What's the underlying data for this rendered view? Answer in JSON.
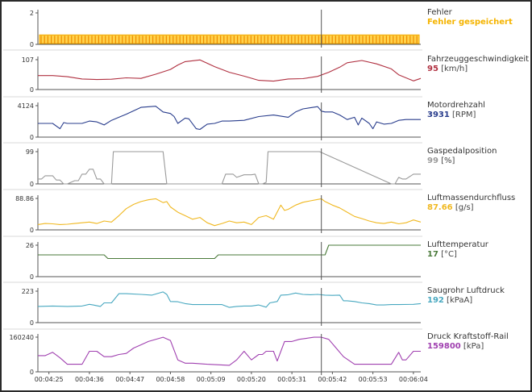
{
  "chart_data": {
    "type": "line",
    "x_ticks": [
      "00:04:25",
      "00:04:36",
      "00:04:47",
      "00:04:58",
      "00:05:09",
      "00:05:20",
      "00:05:31",
      "00:05:42",
      "00:05:53",
      "00:06:04"
    ],
    "x_range_seconds": [
      262,
      366
    ],
    "x_tick_seconds": [
      265,
      276,
      287,
      298,
      309,
      320,
      331,
      342,
      353,
      364
    ],
    "cursor_seconds": 339,
    "panels": [
      {
        "id": "fehler",
        "name": "Fehler",
        "value_text": "Fehler gespeichert",
        "unit": "",
        "color": "#f5b400",
        "ymax_label": "2",
        "ymin_label": "0",
        "ylim": [
          0,
          2
        ],
        "kind": "error-strip",
        "level": 0.6
      },
      {
        "id": "fahrzeuggeschwindigkeit",
        "name": "Fahrzeuggeschwindigkeit",
        "value_text": "95",
        "unit": "[km/h]",
        "color": "#b03040",
        "ymax_label": "107",
        "ymin_label": "0",
        "ylim": [
          0,
          107
        ],
        "kind": "line",
        "x": [
          262,
          266,
          270,
          274,
          278,
          282,
          286,
          290,
          294,
          298,
          300,
          302,
          306,
          310,
          314,
          318,
          322,
          326,
          330,
          334,
          338,
          341,
          344,
          346,
          350,
          354,
          358,
          360,
          364,
          366
        ],
        "y": [
          50,
          50,
          46,
          38,
          36,
          37,
          42,
          40,
          55,
          72,
          88,
          100,
          106,
          82,
          62,
          48,
          33,
          30,
          38,
          39,
          47,
          62,
          80,
          96,
          104,
          92,
          74,
          53,
          31,
          40
        ]
      },
      {
        "id": "motordrehzahl",
        "name": "Motordrehzahl",
        "value_text": "3931",
        "unit": "[RPM]",
        "color": "#283c8c",
        "ymax_label": "4124",
        "ymin_label": "0",
        "ylim": [
          0,
          4124
        ],
        "kind": "line",
        "x": [
          262,
          266,
          268,
          269,
          270,
          274,
          276,
          278,
          280,
          282,
          284,
          286,
          290,
          294,
          296,
          298,
          299,
          300,
          302,
          303,
          305,
          306,
          308,
          310,
          312,
          314,
          318,
          322,
          326,
          330,
          332,
          334,
          338,
          339,
          340,
          342,
          344,
          346,
          348,
          349,
          350,
          352,
          353,
          354,
          356,
          358,
          360,
          362,
          364,
          366
        ],
        "y": [
          1800,
          1800,
          1100,
          1900,
          1800,
          1800,
          2100,
          2000,
          1600,
          2200,
          2600,
          3000,
          3900,
          4050,
          3300,
          3100,
          2700,
          1800,
          2500,
          2400,
          1100,
          1000,
          1700,
          1800,
          2100,
          2100,
          2200,
          2700,
          2900,
          2600,
          3300,
          3700,
          4000,
          3400,
          3300,
          3300,
          2900,
          2300,
          2600,
          1600,
          2500,
          1800,
          1100,
          2000,
          1700,
          1800,
          2200,
          2300,
          2300,
          2300
        ]
      },
      {
        "id": "gaspedalposition",
        "name": "Gaspedalposition",
        "value_text": "99",
        "unit": "[%]",
        "color": "#9a9a9a",
        "ymax_label": "99",
        "ymin_label": "0",
        "ylim": [
          0,
          99
        ],
        "kind": "line",
        "x": [
          262,
          263,
          264,
          266,
          267,
          268,
          269,
          270,
          272,
          273,
          274,
          275,
          276,
          277,
          278,
          279,
          280,
          281,
          282,
          282.5,
          296,
          297,
          312,
          313,
          315,
          316,
          318,
          320,
          321,
          322,
          323,
          324,
          324.5,
          338,
          338.5,
          358,
          359,
          360,
          361,
          362,
          364,
          365,
          366
        ],
        "y": [
          15,
          15,
          25,
          25,
          12,
          12,
          0,
          0,
          10,
          10,
          30,
          30,
          45,
          45,
          15,
          15,
          0,
          0,
          0,
          99,
          99,
          0,
          0,
          30,
          30,
          20,
          28,
          28,
          30,
          0,
          0,
          5,
          99,
          99,
          99,
          0,
          0,
          20,
          15,
          15,
          30,
          30,
          30
        ]
      },
      {
        "id": "luftmassendurchfluss",
        "name": "Luftmassendurchfluss",
        "value_text": "87.66",
        "unit": "[g/s]",
        "color": "#f0b820",
        "ymax_label": "88.86",
        "ymin_label": "0",
        "ylim": [
          0,
          88.86
        ],
        "kind": "line",
        "x": [
          262,
          264,
          266,
          268,
          270,
          272,
          274,
          276,
          278,
          280,
          282,
          284,
          286,
          288,
          290,
          292,
          294,
          296,
          297,
          298,
          300,
          302,
          304,
          306,
          308,
          310,
          312,
          314,
          316,
          318,
          320,
          322,
          324,
          326,
          328,
          329,
          330,
          332,
          334,
          336,
          338,
          339,
          340,
          342,
          344,
          346,
          348,
          350,
          352,
          354,
          356,
          358,
          360,
          362,
          364,
          366
        ],
        "y": [
          15,
          18,
          17,
          15,
          16,
          18,
          20,
          22,
          18,
          25,
          22,
          40,
          60,
          72,
          80,
          85,
          88,
          77,
          80,
          65,
          50,
          40,
          30,
          35,
          20,
          12,
          18,
          25,
          20,
          22,
          15,
          35,
          40,
          30,
          70,
          55,
          58,
          70,
          78,
          82,
          86,
          88,
          80,
          70,
          62,
          50,
          38,
          32,
          25,
          20,
          18,
          22,
          17,
          20,
          28,
          22
        ]
      },
      {
        "id": "lufttemperatur",
        "name": "Lufttemperatur",
        "value_text": "17",
        "unit": "[°C]",
        "color": "#4a7a3a",
        "ymax_label": "26",
        "ymin_label": "0",
        "ylim": [
          0,
          26
        ],
        "kind": "line",
        "x": [
          262,
          280,
          281,
          310,
          311,
          340,
          341,
          366
        ],
        "y": [
          18,
          18,
          15,
          15,
          18,
          18,
          26,
          26
        ]
      },
      {
        "id": "saugrohr-luftdruck",
        "name": "Saugrohr Luftdruck",
        "value_text": "192",
        "unit": "[kPaA]",
        "color": "#48a8c0",
        "ymax_label": "223",
        "ymin_label": "0",
        "ylim": [
          0,
          223
        ],
        "kind": "line",
        "x": [
          262,
          266,
          270,
          274,
          276,
          277,
          279,
          280,
          282,
          284,
          286,
          290,
          293,
          296,
          297,
          298,
          300,
          302,
          304,
          308,
          312,
          314,
          316,
          318,
          320,
          322,
          324,
          325,
          327,
          328,
          330,
          332,
          334,
          336,
          338,
          340,
          342,
          344,
          345,
          346,
          348,
          350,
          352,
          354,
          356,
          358,
          360,
          364,
          366
        ],
        "y": [
          115,
          118,
          115,
          118,
          130,
          125,
          115,
          140,
          140,
          205,
          205,
          200,
          195,
          218,
          200,
          150,
          148,
          135,
          128,
          128,
          128,
          108,
          115,
          118,
          118,
          125,
          110,
          140,
          150,
          195,
          198,
          210,
          200,
          198,
          200,
          195,
          193,
          195,
          155,
          155,
          150,
          140,
          135,
          125,
          125,
          128,
          128,
          130,
          135
        ]
      },
      {
        "id": "druck-kraftstoff-rail",
        "name": "Druck Kraftstoff-Rail",
        "value_text": "159800",
        "unit": "[kPa]",
        "color": "#a040b0",
        "ymax_label": "160240",
        "ymin_label": "0",
        "ylim": [
          0,
          160240
        ],
        "kind": "line",
        "x": [
          262,
          264,
          266,
          268,
          270,
          272,
          274,
          276,
          278,
          280,
          282,
          284,
          286,
          288,
          290,
          292,
          296,
          298,
          300,
          302,
          304,
          308,
          314,
          316,
          318,
          320,
          322,
          323,
          324,
          326,
          327,
          329,
          331,
          333,
          335,
          337,
          339,
          341,
          343,
          345,
          348,
          350,
          356,
          358,
          360,
          361,
          362,
          364,
          366
        ],
        "y": [
          75000,
          75000,
          90000,
          65000,
          35000,
          35000,
          35000,
          95000,
          95000,
          70000,
          70000,
          80000,
          85000,
          110000,
          125000,
          140000,
          160000,
          145000,
          55000,
          40000,
          40000,
          35000,
          30000,
          55000,
          95000,
          55000,
          80000,
          80000,
          95000,
          95000,
          50000,
          140000,
          140000,
          150000,
          155000,
          160000,
          160000,
          150000,
          110000,
          70000,
          35000,
          35000,
          35000,
          35000,
          90000,
          55000,
          55000,
          95000,
          95000
        ]
      }
    ]
  }
}
